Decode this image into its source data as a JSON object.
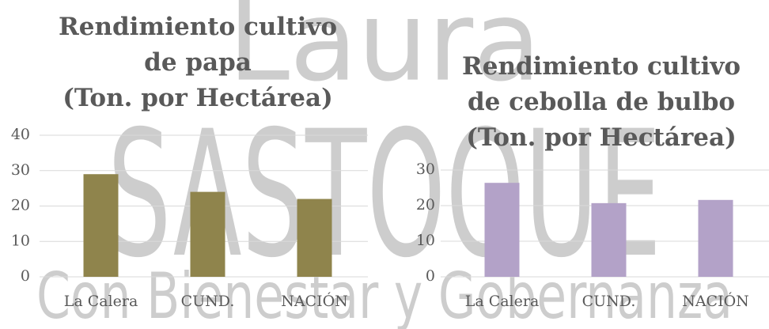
{
  "watermark": [
    "Laura",
    "SASTOQUE",
    "Con Bienestar y Gobernanza"
  ],
  "chart_data": [
    {
      "type": "bar",
      "title": "Rendimiento cultivo\nde papa\n(Ton. por Hectárea)",
      "categories": [
        "La Calera",
        "CUND.",
        "NACIÓN"
      ],
      "values": [
        29,
        24,
        22
      ],
      "color": "#8f844c",
      "ylim": [
        0,
        40
      ],
      "yticks": [
        0,
        10,
        20,
        30,
        40
      ],
      "grid": true
    },
    {
      "type": "bar",
      "title": "Rendimiento cultivo\nde cebolla de bulbo\n(Ton. por Hectárea)",
      "categories": [
        "La Calera",
        "CUND.",
        "NACIÓN"
      ],
      "values": [
        26.4,
        20.7,
        21.6
      ],
      "color": "#b3a2c8",
      "ylim": [
        0,
        30
      ],
      "yticks": [
        0,
        10,
        20,
        30
      ],
      "grid": true
    }
  ]
}
